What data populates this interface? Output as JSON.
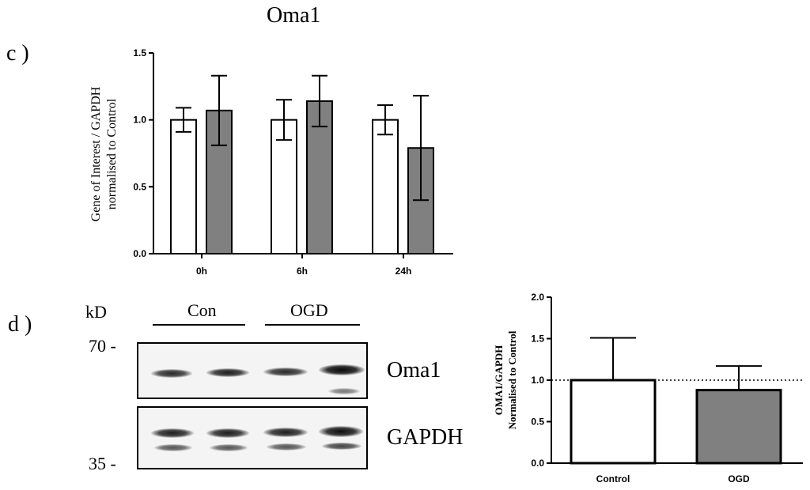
{
  "figure_title": "Oma1",
  "panel_c_label": "c )",
  "panel_d_label": "d )",
  "western_blot": {
    "kd_label": "kD",
    "marker_70": "70 -",
    "marker_35": "35 -",
    "group_con": "Con",
    "group_ogd": "OGD",
    "band_oma1": "Oma1",
    "band_gapdh": "GAPDH"
  },
  "chart_data": [
    {
      "type": "bar",
      "panel": "c",
      "ylabel_line1": "Gene of Interest / GAPDH",
      "ylabel_line2": "normalised to Control",
      "categories": [
        "0h",
        "6h",
        "24h"
      ],
      "ylim": [
        0,
        1.5
      ],
      "yticks": [
        "0.0",
        "0.5",
        "1.0",
        "1.5"
      ],
      "grid": false,
      "series": [
        {
          "fill": "#ffffff",
          "values": [
            1.0,
            1.0,
            1.0
          ],
          "errors": [
            0.09,
            0.15,
            0.11
          ]
        },
        {
          "fill": "#808080",
          "values": [
            1.07,
            1.14,
            0.79
          ],
          "errors": [
            0.26,
            0.19,
            0.39
          ]
        }
      ]
    },
    {
      "type": "bar",
      "panel": "d",
      "ylabel_line1": "OMA1/GAPDH",
      "ylabel_line2": "Normalised to  Control",
      "categories": [
        "Control",
        "OGD"
      ],
      "values": [
        1.0,
        0.88
      ],
      "errors": [
        0.51,
        0.29
      ],
      "fills": [
        "#ffffff",
        "#808080"
      ],
      "ylim": [
        0,
        2.0
      ],
      "yticks": [
        "0.0",
        "0.5",
        "1.0",
        "1.5",
        "2.0"
      ],
      "reference_line": 1.0,
      "grid": false
    }
  ]
}
